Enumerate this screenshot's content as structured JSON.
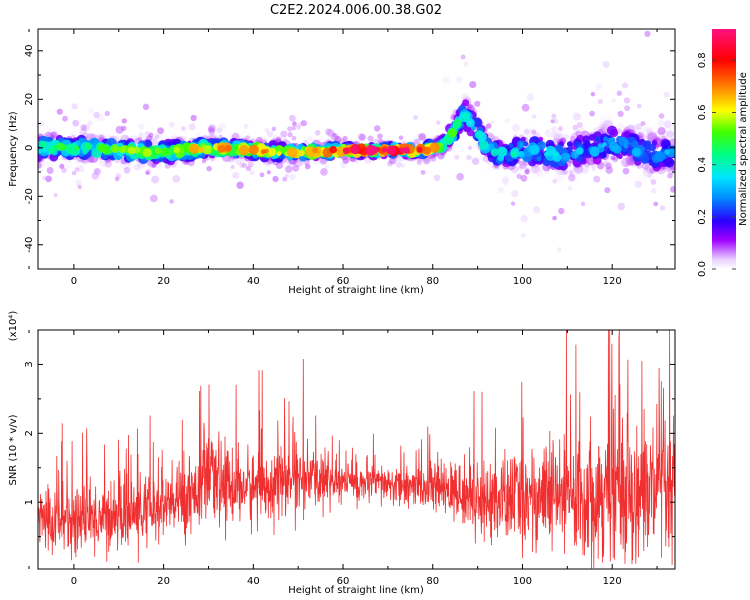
{
  "title": "C2E2.2024.006.00.38.G02",
  "chart_data": [
    {
      "type": "heatmap",
      "xlabel": "Height of straight line (km)",
      "ylabel": "Frequency (Hz)",
      "xlim": [
        -8,
        134
      ],
      "ylim": [
        -50,
        49
      ],
      "xticks": [
        0,
        20,
        40,
        60,
        80,
        100,
        120
      ],
      "yticks": [
        -40,
        -20,
        0,
        20,
        40
      ],
      "colorbar": {
        "label": "Normalized spectral amplitude",
        "range": [
          0.0,
          0.92
        ],
        "ticks": [
          0.0,
          0.2,
          0.4,
          0.6,
          0.8
        ]
      },
      "ridge": {
        "x": [
          -8,
          0,
          10,
          20,
          30,
          40,
          50,
          60,
          70,
          78,
          82,
          84,
          86,
          87,
          88,
          90,
          92,
          95,
          100,
          110,
          120,
          130,
          134
        ],
        "frequency": [
          0,
          0,
          -1,
          -2,
          0,
          -1,
          -2,
          -1,
          -1,
          -1,
          1,
          5,
          11,
          14,
          12,
          7,
          0,
          -3,
          -1,
          -3,
          2,
          -3,
          -2
        ],
        "spread": [
          5,
          4,
          4,
          4,
          3,
          3,
          3,
          2,
          2,
          2,
          3,
          4,
          5,
          6,
          6,
          5,
          5,
          5,
          6,
          7,
          7,
          8,
          7
        ],
        "peak_amplitude": [
          0.4,
          0.45,
          0.5,
          0.5,
          0.6,
          0.65,
          0.6,
          0.8,
          0.85,
          0.8,
          0.5,
          0.45,
          0.4,
          0.35,
          0.35,
          0.35,
          0.35,
          0.4,
          0.35,
          0.3,
          0.3,
          0.25,
          0.3
        ]
      }
    },
    {
      "type": "line",
      "xlabel": "Height of straight line (km)",
      "ylabel": "SNR (10 * v/v)",
      "yscale_label": "(x10⁴)",
      "xlim": [
        -8,
        134
      ],
      "ylim": [
        0.03,
        3.5
      ],
      "xticks": [
        0,
        20,
        40,
        60,
        80,
        100,
        120
      ],
      "yticks": [
        1,
        2,
        3
      ],
      "color": "#f03030",
      "envelope": {
        "x": [
          -8,
          0,
          10,
          20,
          30,
          40,
          50,
          60,
          70,
          80,
          88,
          95,
          100,
          110,
          120,
          134
        ],
        "mean": [
          0.75,
          0.75,
          0.8,
          0.9,
          1.3,
          1.2,
          1.35,
          1.3,
          1.25,
          1.2,
          1.1,
          1.0,
          1.1,
          1.05,
          1.2,
          1.1
        ],
        "amplitude": [
          0.45,
          0.5,
          0.45,
          0.5,
          0.55,
          0.5,
          0.45,
          0.3,
          0.25,
          0.3,
          0.45,
          0.6,
          0.65,
          0.8,
          0.9,
          1.0
        ]
      }
    }
  ]
}
